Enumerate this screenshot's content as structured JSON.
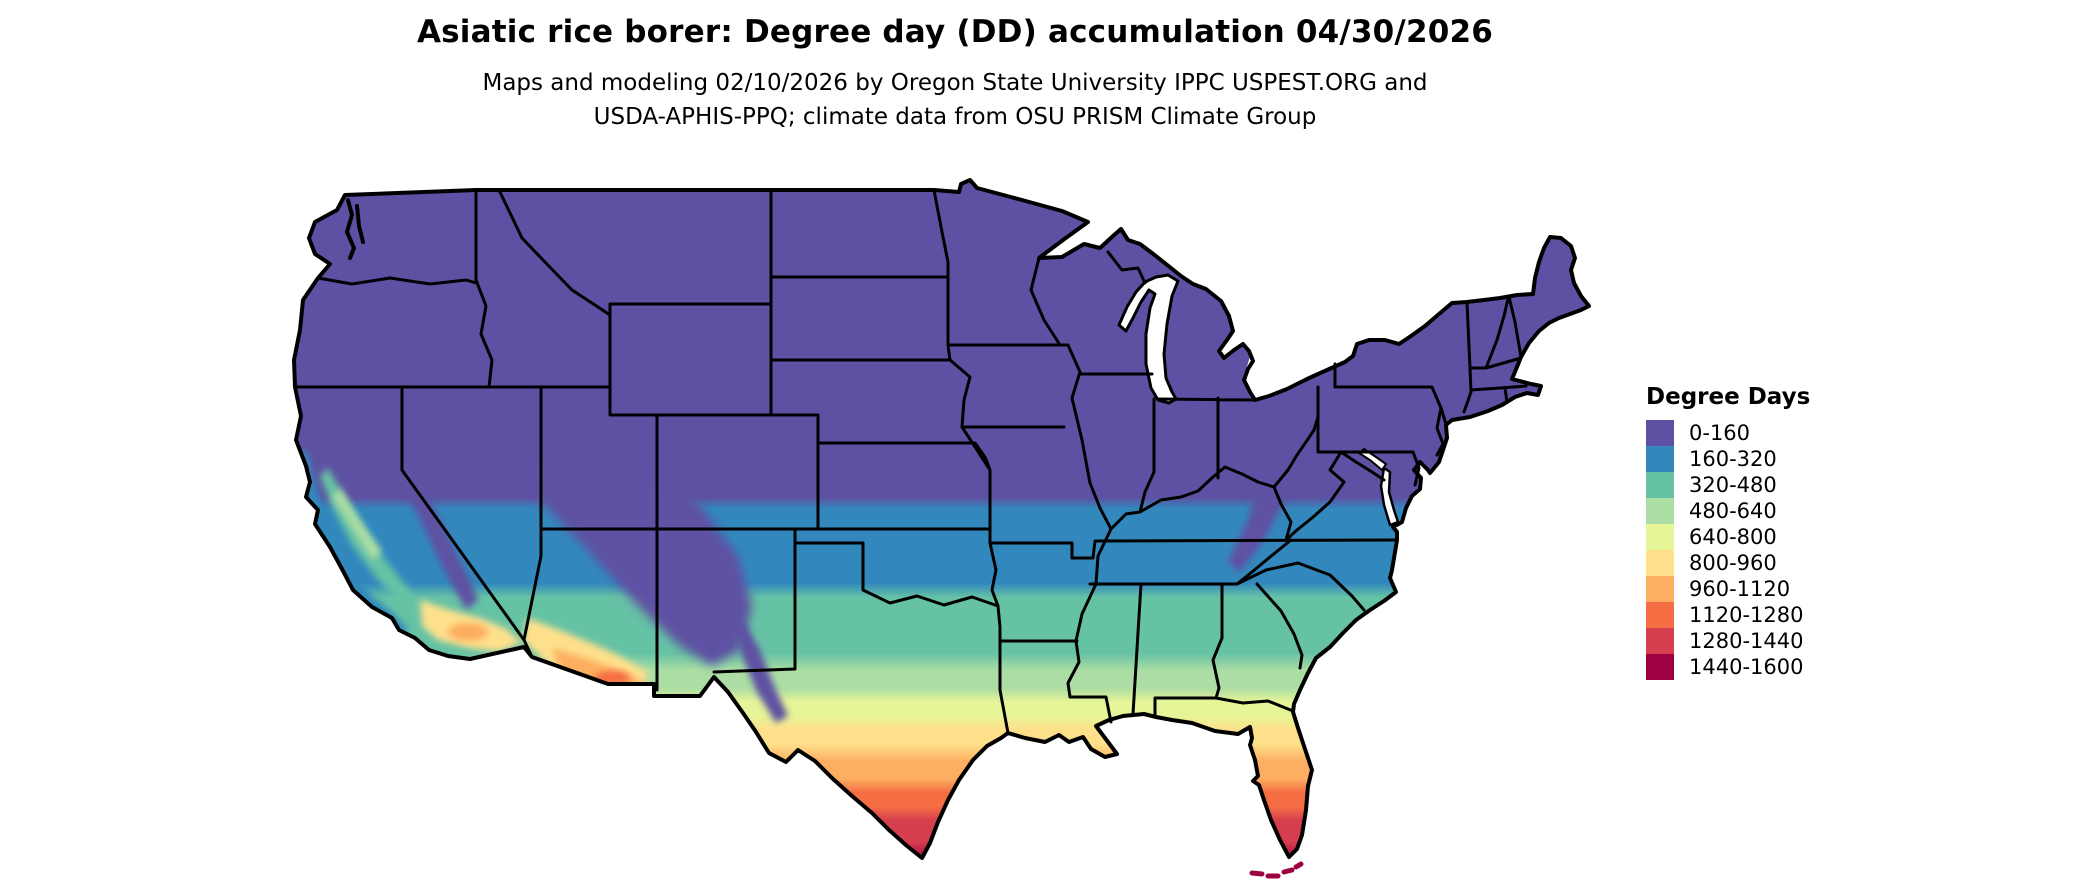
{
  "header": {
    "title": "Asiatic rice borer: Degree day (DD) accumulation 04/30/2026",
    "subtitle_line1": "Maps and modeling 02/10/2026 by Oregon State University IPPC USPEST.ORG and",
    "subtitle_line2": "USDA-APHIS-PPQ; climate data from OSU PRISM Climate Group"
  },
  "legend": {
    "title": "Degree Days",
    "items": [
      {
        "label": "0-160",
        "color": "#5e51a3"
      },
      {
        "label": "160-320",
        "color": "#3288bd"
      },
      {
        "label": "320-480",
        "color": "#66c2a5"
      },
      {
        "label": "480-640",
        "color": "#abdda4"
      },
      {
        "label": "640-800",
        "color": "#e6f598"
      },
      {
        "label": "800-960",
        "color": "#fee08b"
      },
      {
        "label": "960-1120",
        "color": "#fdae61"
      },
      {
        "label": "1120-1280",
        "color": "#f46d43"
      },
      {
        "label": "1280-1440",
        "color": "#d53e4f"
      },
      {
        "label": "1440-1600",
        "color": "#9e0142"
      }
    ]
  },
  "map": {
    "region": "Continental United States",
    "border_color": "#000000",
    "background_color": "#ffffff",
    "water_color": "#ffffff"
  },
  "chart_data": {
    "type": "heatmap",
    "subtype": "choropleth-degree-day-map",
    "title": "Asiatic rice borer: Degree day (DD) accumulation 04/30/2026",
    "legend_title": "Degree Days",
    "bins": [
      {
        "range": "0-160",
        "color": "#5e51a3",
        "coverage": "Pacific Northwest, Rockies, northern plains, Midwest, Northeast, Appalachians"
      },
      {
        "range": "160-320",
        "color": "#3288bd",
        "coverage": "band across southern Missouri, Kentucky, Virginia, Oklahoma panhandle, California coast ranges"
      },
      {
        "range": "320-480",
        "color": "#66c2a5",
        "coverage": "Arkansas, Tennessee, Carolinas coast, Oklahoma, north Texas, California Central Valley"
      },
      {
        "range": "480-640",
        "color": "#abdda4",
        "coverage": "Deep South interior, central Texas"
      },
      {
        "range": "640-800",
        "color": "#e6f598",
        "coverage": "Gulf Coast plain, south-central Texas, north Florida, southern Arizona fringe"
      },
      {
        "range": "800-960",
        "color": "#fee08b",
        "coverage": "coastal Texas and Louisiana, inland south Arizona, southern California valleys"
      },
      {
        "range": "960-1120",
        "color": "#fdae61",
        "coverage": "south Texas, central Florida, low-desert Arizona"
      },
      {
        "range": "1120-1280",
        "color": "#f46d43",
        "coverage": "Rio Grande Valley, south Florida"
      },
      {
        "range": "1280-1440",
        "color": "#d53e4f",
        "coverage": "southern tip of Florida"
      },
      {
        "range": "1440-1600",
        "color": "#9e0142",
        "coverage": "Florida Keys"
      }
    ]
  }
}
